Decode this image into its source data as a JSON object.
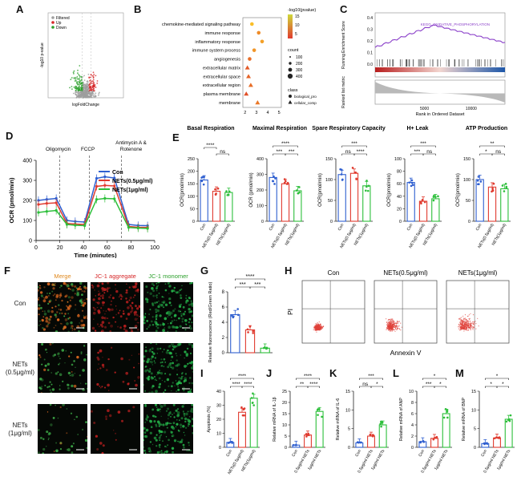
{
  "panel_labels": {
    "A": "A",
    "B": "B",
    "C": "C",
    "D": "D",
    "E": "E",
    "F": "F",
    "G": "G",
    "H": "H",
    "I": "I",
    "J": "J",
    "K": "K",
    "L": "L",
    "M": "M"
  },
  "volcano": {
    "legend": [
      "Filtered",
      "Up",
      "Down"
    ],
    "ylabel": "-log10 p-value",
    "xlabel": "logFoldChange",
    "colors": {
      "filtered": "#9e9e9e",
      "up": "#d62728",
      "down": "#2ca02c"
    }
  },
  "enrichment": {
    "terms": [
      "chemokine-mediated signaling pathway",
      "immune response",
      "inflammatory response",
      "immune system process",
      "angiogenesis",
      "extracellular matrix",
      "extracellular space",
      "extracellular region",
      "plasma membrane",
      "membrane"
    ],
    "x": [
      2.6,
      3.2,
      3.5,
      2.8,
      2.4,
      2.2,
      2.3,
      2.5,
      2.1,
      3.1
    ],
    "class": [
      "circle",
      "circle",
      "circle",
      "circle",
      "circle",
      "triangle",
      "triangle",
      "triangle",
      "triangle",
      "triangle"
    ],
    "color_value": [
      13,
      8,
      10,
      9,
      5,
      3,
      4,
      5,
      2,
      6
    ],
    "xticks": [
      "2",
      "3",
      "4",
      "5"
    ],
    "legend_title_color": "-log10(pvalue)",
    "legend_color_ticks": [
      "15",
      "10",
      "5"
    ],
    "legend_title_count": "count",
    "legend_count_ticks": [
      "100",
      "200",
      "300",
      "400"
    ],
    "legend_title_class": "class",
    "legend_class_items": [
      "biological_process",
      "cellular_component"
    ]
  },
  "gsea": {
    "ylabel_top": "Running Enrichment Score",
    "ylabel_bottom": "Ranked list metric",
    "xlabel": "Rank in Ordered Dataset",
    "xticks": [
      "5000",
      "10000"
    ],
    "yticks_top": [
      "0.4",
      "0.3",
      "0.2",
      "0.1",
      "0.0"
    ],
    "annotation": "KEGG_OXIDATIVE_PHOSPHORYLATION"
  },
  "chart_data": [
    {
      "panel": "D",
      "type": "line",
      "ylabel": "OCR (pmol/min)",
      "xlabel": "Time (minutes)",
      "xlim": [
        0,
        100
      ],
      "ylim": [
        0,
        400
      ],
      "xticks": [
        0,
        20,
        40,
        60,
        80,
        100
      ],
      "yticks": [
        0,
        100,
        200,
        300,
        400
      ],
      "injections": [
        {
          "label": "Oligomycin",
          "x": 20
        },
        {
          "label": "FCCP",
          "x": 45
        },
        {
          "label": "Antimycin A & Rotenone",
          "x": 72
        }
      ],
      "x": [
        2,
        9,
        17,
        26,
        33,
        41,
        51,
        58,
        66,
        78,
        86,
        94
      ],
      "series": [
        {
          "name": "Con",
          "color": "#2f5fd0",
          "values": [
            200,
            205,
            210,
            100,
            95,
            92,
            310,
            318,
            312,
            80,
            75,
            74
          ]
        },
        {
          "name": "NETs(0.5μg/ml)",
          "color": "#e03b2f",
          "values": [
            180,
            185,
            188,
            85,
            82,
            80,
            270,
            275,
            272,
            70,
            66,
            65
          ]
        },
        {
          "name": "NETs(1μg/ml)",
          "color": "#2cbf3a",
          "values": [
            140,
            145,
            150,
            80,
            76,
            74,
            205,
            210,
            208,
            65,
            62,
            60
          ]
        }
      ]
    },
    {
      "panel": "E",
      "type": "bar",
      "groups": [
        {
          "title": "Basal Respiration",
          "ylabel": "OCR(pmol/min)",
          "ylim": [
            0,
            250
          ],
          "yticks": [
            0,
            50,
            100,
            150,
            200,
            250
          ],
          "values": [
            165,
            120,
            115
          ],
          "sig": [
            "****",
            "ns"
          ]
        },
        {
          "title": "Maximal Respiration",
          "ylabel": "OCR (pmol/min)",
          "ylim": [
            0,
            400
          ],
          "yticks": [
            0,
            100,
            200,
            300,
            400
          ],
          "values": [
            280,
            240,
            195
          ],
          "sig": [
            "****",
            "***",
            "***"
          ]
        },
        {
          "title": "Spare Respiratory Capacity",
          "ylabel": "OCR(pmol/min)",
          "ylim": [
            0,
            150
          ],
          "yticks": [
            0,
            50,
            100,
            150
          ],
          "values": [
            112,
            115,
            85
          ],
          "sig": [
            "***",
            "ns",
            "****"
          ]
        },
        {
          "title": "H+ Leak",
          "ylabel": "OCR(pmol/min)",
          "ylim": [
            0,
            100
          ],
          "yticks": [
            0,
            20,
            40,
            60,
            80,
            100
          ],
          "values": [
            62,
            32,
            36
          ],
          "sig": [
            "***",
            "***",
            "ns"
          ]
        },
        {
          "title": "ATP Production",
          "ylabel": "OCR(pmol/min)",
          "ylim": [
            0,
            150
          ],
          "yticks": [
            0,
            50,
            100,
            150
          ],
          "values": [
            100,
            82,
            78
          ],
          "sig": [
            "**",
            "*",
            "ns"
          ]
        }
      ],
      "categories": [
        "Con",
        "NETs(0.5μg/ml)",
        "NETs(1μg/ml)"
      ]
    },
    {
      "panel": "G",
      "type": "bar",
      "ylabel": "Relative fluorescence (Red/Green Ratio)",
      "ylim": [
        0,
        8
      ],
      "yticks": [
        0,
        2,
        4,
        6,
        8
      ],
      "values": [
        5.0,
        3.0,
        0.6
      ],
      "sig": [
        "****",
        "***",
        "***"
      ]
    },
    {
      "panel": "I",
      "type": "bar",
      "ylabel": "Apoptosis (%)",
      "ylim": [
        0,
        40
      ],
      "yticks": [
        0,
        10,
        20,
        30,
        40
      ],
      "categories": [
        "Con",
        "NETs(0.5μg/ml)",
        "NETs(1μg/ml)"
      ],
      "values": [
        3.5,
        25,
        35
      ],
      "sig": [
        "****",
        "****",
        "****"
      ]
    },
    {
      "panel": "J",
      "type": "bar",
      "ylabel": "Relative mRNA of IL-1β",
      "ylim": [
        0,
        25
      ],
      "yticks": [
        0,
        5,
        10,
        15,
        20,
        25
      ],
      "categories": [
        "Con",
        "0.5μg/ml NETs",
        "1μg/ml NETs"
      ],
      "values": [
        1,
        5.5,
        16
      ],
      "sig": [
        "****",
        "**",
        "****"
      ]
    },
    {
      "panel": "K",
      "type": "bar",
      "ylabel": "Relative mRNA of IL-6",
      "ylim": [
        0,
        15
      ],
      "yticks": [
        0,
        5,
        10,
        15
      ],
      "categories": [
        "Con",
        "0.5μg/ml NETs",
        "1μg/ml NETs"
      ],
      "values": [
        1.2,
        3,
        6
      ],
      "sig": [
        "***",
        "ns",
        "*"
      ]
    },
    {
      "panel": "L",
      "type": "bar",
      "ylabel": "Relative mRNA of ANP",
      "ylim": [
        0,
        10
      ],
      "yticks": [
        0,
        2,
        4,
        6,
        8,
        10
      ],
      "categories": [
        "Con",
        "0.5μg/ml NETs",
        "1μg/ml NETs"
      ],
      "values": [
        1,
        1.6,
        6
      ],
      "sig": [
        "*",
        "***",
        "*"
      ]
    },
    {
      "panel": "M",
      "type": "bar",
      "ylabel": "Relative mRNA of BNP",
      "ylim": [
        0,
        15
      ],
      "yticks": [
        0,
        5,
        10,
        15
      ],
      "categories": [
        "Con",
        "0.5μg/ml NETs",
        "1μg/ml NETs"
      ],
      "values": [
        1,
        2.5,
        7.5
      ],
      "sig": [
        "*",
        "*",
        "*"
      ]
    }
  ],
  "bar_colors": [
    "#2f5fd0",
    "#e03b2f",
    "#2cbf3a"
  ],
  "microscopy": {
    "columns": [
      {
        "label": "Merge",
        "color": "#e08a20"
      },
      {
        "label": "JC-1 aggregate",
        "color": "#d62728"
      },
      {
        "label": "JC-1 monomer",
        "color": "#2ca02c"
      }
    ],
    "rows": [
      "Con",
      "NETs\n(0.5μg/ml)",
      "NETs\n(1μg/ml)"
    ]
  },
  "flow": {
    "columns": [
      "Con",
      "NETs(0.5μg/ml)",
      "NETs(1μg/ml)"
    ],
    "xlabel": "Annexin V",
    "ylabel": "PI"
  }
}
